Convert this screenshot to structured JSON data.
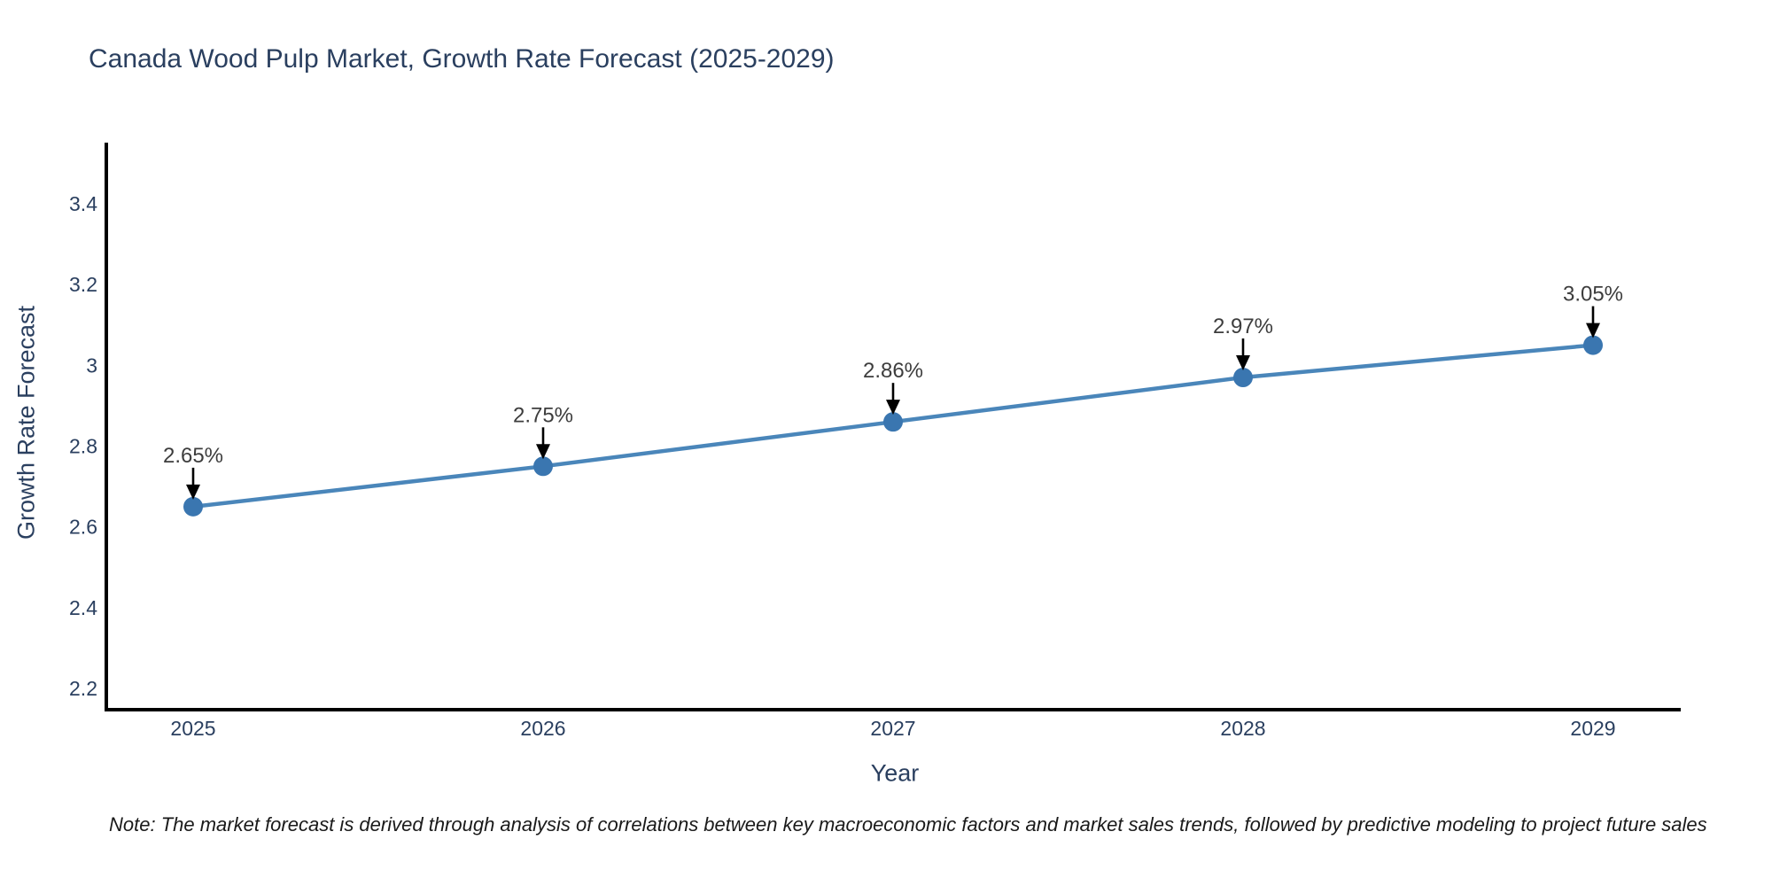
{
  "page": {
    "background": "#ffffff"
  },
  "chart_data": {
    "type": "line",
    "title": "Canada Wood Pulp Market, Growth Rate Forecast (2025-2029)",
    "xlabel": "Year",
    "ylabel": "Growth Rate Forecast",
    "categories": [
      "2025",
      "2026",
      "2027",
      "2028",
      "2029"
    ],
    "values": [
      2.65,
      2.75,
      2.86,
      2.97,
      3.05
    ],
    "point_labels": [
      "2.65%",
      "2.75%",
      "2.86%",
      "2.97%",
      "3.05%"
    ],
    "yticks": [
      2.2,
      2.4,
      2.6,
      2.8,
      3,
      3.2,
      3.4
    ],
    "ytick_labels": [
      "2.2",
      "2.4",
      "2.6",
      "2.8",
      "3",
      "3.2",
      "3.4"
    ],
    "xtick_labels": [
      "2025",
      "2026",
      "2027",
      "2028",
      "2029"
    ],
    "xlim": [
      2024.75,
      2029.26
    ],
    "ylim": [
      2.14,
      3.55
    ],
    "grid": false,
    "legend_position": "none",
    "annotation_style": "value labels above each point with black down-arrows",
    "colors": {
      "line": "#4a86ba",
      "marker": "#3a76b0",
      "axis": "#000000",
      "tick_text": "#2a3f5f",
      "title_text": "#2a3f5f",
      "axis_label_text": "#2a3f5f",
      "annotation_text": "#3d3d3d",
      "arrow": "#000000",
      "note_text": "#1a1a1a"
    }
  },
  "note": "Note: The market forecast is derived through analysis of correlations between key macroeconomic factors and market sales trends, followed by predictive modeling to project future sales"
}
